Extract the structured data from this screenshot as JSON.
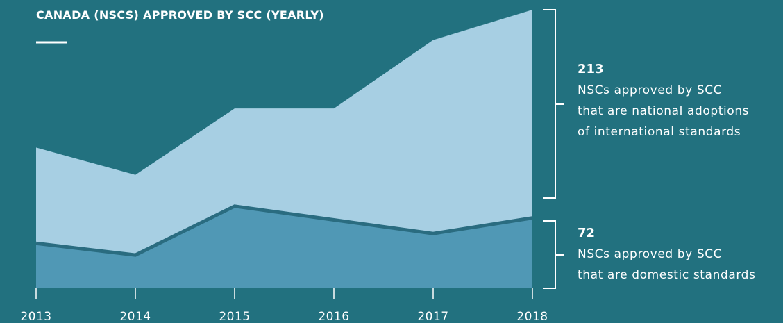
{
  "chart_data": {
    "type": "stacked-area",
    "title": "CANADA (NSCS) APPROVED BY SCC (YEARLY)",
    "categories": [
      "2013",
      "2014",
      "2015",
      "2016",
      "2017",
      "2018"
    ],
    "series": [
      {
        "legend_lines": [
          "NSCs approved by SCC",
          "that are domestic standards"
        ],
        "color": "#5098b5",
        "values": [
          46,
          34,
          84,
          70,
          56,
          72
        ]
      },
      {
        "legend_lines": [
          "NSCs approved by SCC",
          "that are national adoptions",
          "of international standards"
        ],
        "color": "#a7cfe3",
        "values": [
          98,
          82,
          100,
          114,
          198,
          213
        ]
      }
    ],
    "background": "#22717f",
    "separator_color": "#2a6c80"
  }
}
